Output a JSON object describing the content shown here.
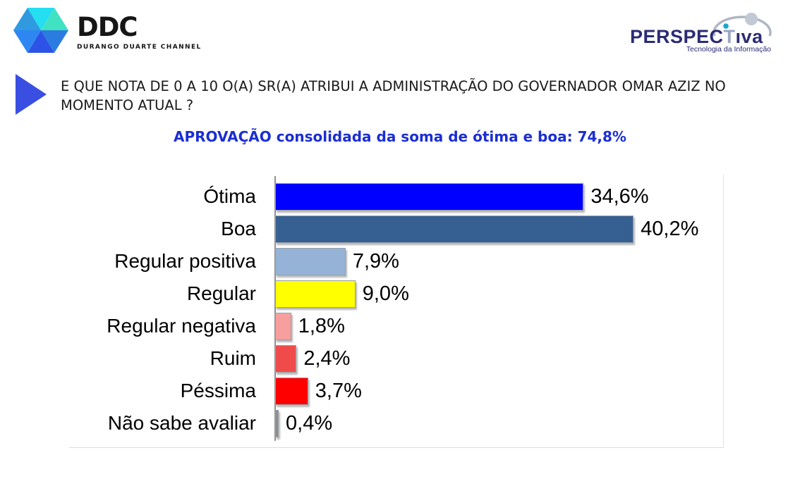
{
  "logos": {
    "ddc": {
      "text": "DDC",
      "subtext": "DURANGO DUARTE CHANNEL",
      "facets": [
        "#2F9ADF",
        "#24DEF2",
        "#40E2C2",
        "#2B7CE0",
        "#2C53E6",
        "#2E86F2"
      ]
    },
    "perspectiva": {
      "part1": "PERSPEC",
      "part2": "T",
      "part3": "ıva",
      "subtext": "Tecnologia da Informação",
      "navy": "#2B2C74",
      "light": "#9AA6C6",
      "teal_dot": "#18A8CC",
      "arc_color": "#AFB6C4",
      "ball_color": "#C2C9D4"
    }
  },
  "question": {
    "text": "E QUE NOTA DE 0 A 10 O(A) SR(A) ATRIBUI A ADMINISTRAÇÃO DO GOVERNADOR OMAR AZIZ NO MOMENTO ATUAL ?",
    "arrow_color": "#3A4FE2"
  },
  "subtitle": {
    "text": "APROVAÇÃO consolidada da soma de ótima e boa: 74,8%",
    "color": "#1B2ED2"
  },
  "chart_data": {
    "type": "bar",
    "orientation": "horizontal",
    "title": "",
    "categories": [
      "Ótima",
      "Boa",
      "Regular positiva",
      "Regular",
      "Regular negativa",
      "Ruim",
      "Péssima",
      "Não sabe avaliar"
    ],
    "values": [
      34.6,
      40.2,
      7.9,
      9.0,
      1.8,
      2.4,
      3.7,
      0.4
    ],
    "value_labels": [
      "34,6%",
      "40,2%",
      "7,9%",
      "9,0%",
      "1,8%",
      "2,4%",
      "3,7%",
      "0,4%"
    ],
    "bar_colors": [
      "#0000FE",
      "#376092",
      "#95B3D7",
      "#FFFF00",
      "#F79E9E",
      "#EF4B4B",
      "#FE0000",
      "#8E8E8E"
    ],
    "xlim": [
      0,
      50
    ],
    "grid": false,
    "legend": false,
    "axis_color": "#919191",
    "xlabel": "",
    "ylabel": ""
  }
}
